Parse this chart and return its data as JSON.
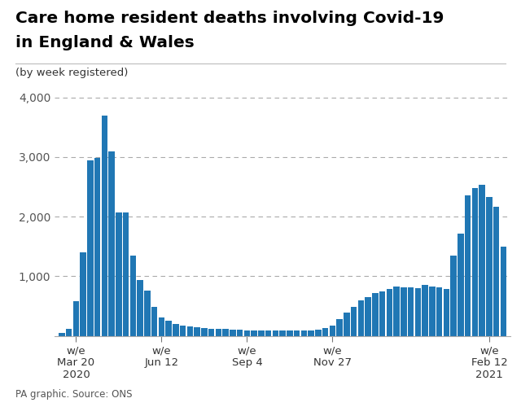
{
  "title_line1": "Care home resident deaths involving Covid-19",
  "title_line2": "in England & Wales",
  "subtitle": "(by week registered)",
  "source": "PA graphic. Source: ONS",
  "bar_color": "#2077b4",
  "background_color": "#ffffff",
  "ylim": [
    0,
    4200
  ],
  "yticks": [
    1000,
    2000,
    3000,
    4000
  ],
  "ytick_labels": [
    "1,000",
    "2,000",
    "3,000",
    "4,000"
  ],
  "values": [
    50,
    120,
    580,
    1400,
    2950,
    2980,
    3700,
    3100,
    2070,
    2070,
    1350,
    930,
    760,
    490,
    310,
    250,
    200,
    170,
    155,
    140,
    130,
    120,
    115,
    110,
    105,
    100,
    95,
    90,
    90,
    88,
    88,
    85,
    85,
    85,
    90,
    95,
    100,
    130,
    170,
    280,
    390,
    480,
    590,
    650,
    720,
    750,
    790,
    820,
    810,
    810,
    800,
    850,
    820,
    810,
    790,
    1350,
    1720,
    2350,
    2480,
    2540,
    2330,
    2170,
    1500
  ],
  "tick_positions": [
    2,
    14,
    26,
    38,
    60
  ],
  "tick_labels": [
    "w/e\nMar 20\n2020",
    "w/e\nJun 12",
    "w/e\nSep 4",
    "w/e\nNov 27",
    "w/e\nFeb 12\n2021"
  ]
}
